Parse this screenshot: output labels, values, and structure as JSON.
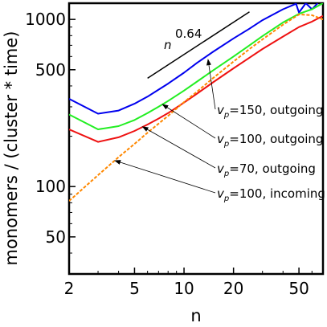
{
  "chart_data": {
    "type": "line",
    "xlabel": "n",
    "ylabel": "monomers / (cluster * time)",
    "xscale": "log",
    "yscale": "log",
    "xlim": [
      2,
      70
    ],
    "ylim": [
      30,
      1250
    ],
    "grid": false,
    "x_ticks": [
      2,
      5,
      10,
      20,
      50
    ],
    "x_tick_labels": [
      "2",
      "5",
      "10",
      "20",
      "50"
    ],
    "y_ticks": [
      50,
      100,
      500,
      1000
    ],
    "y_tick_labels": [
      "50",
      "100",
      "500",
      "1000"
    ],
    "series": [
      {
        "name": "v_p=150, outgoing",
        "color": "#0000ee",
        "style": "solid",
        "points": [
          [
            2,
            335
          ],
          [
            3,
            273
          ],
          [
            4,
            285
          ],
          [
            5,
            313
          ],
          [
            6,
            345
          ],
          [
            7,
            380
          ],
          [
            8,
            413
          ],
          [
            10,
            480
          ],
          [
            12,
            550
          ],
          [
            15,
            640
          ],
          [
            20,
            770
          ],
          [
            25,
            880
          ],
          [
            30,
            990
          ],
          [
            40,
            1150
          ],
          [
            48,
            1240
          ],
          [
            50,
            1100
          ],
          [
            55,
            1250
          ],
          [
            60,
            1150
          ],
          [
            65,
            1250
          ]
        ]
      },
      {
        "name": "v_p=100, outgoing",
        "color": "#22ee22",
        "style": "solid",
        "points": [
          [
            2,
            270
          ],
          [
            3,
            220
          ],
          [
            4,
            230
          ],
          [
            5,
            250
          ],
          [
            6,
            275
          ],
          [
            7,
            300
          ],
          [
            8,
            325
          ],
          [
            10,
            375
          ],
          [
            12,
            425
          ],
          [
            15,
            495
          ],
          [
            20,
            600
          ],
          [
            25,
            700
          ],
          [
            30,
            795
          ],
          [
            40,
            960
          ],
          [
            50,
            1080
          ],
          [
            60,
            1150
          ],
          [
            70,
            1250
          ]
        ]
      },
      {
        "name": "v_p=70, outgoing",
        "color": "#ee1111",
        "style": "solid",
        "points": [
          [
            2,
            220
          ],
          [
            3,
            185
          ],
          [
            4,
            197
          ],
          [
            5,
            215
          ],
          [
            6,
            235
          ],
          [
            7,
            255
          ],
          [
            8,
            275
          ],
          [
            10,
            318
          ],
          [
            12,
            360
          ],
          [
            15,
            420
          ],
          [
            20,
            510
          ],
          [
            25,
            590
          ],
          [
            30,
            665
          ],
          [
            40,
            790
          ],
          [
            50,
            900
          ],
          [
            60,
            970
          ],
          [
            70,
            1050
          ]
        ]
      },
      {
        "name": "v_p=100, incoming",
        "color": "#ff8800",
        "style": "dashed",
        "points": [
          [
            2,
            82
          ],
          [
            3,
            117
          ],
          [
            4,
            150
          ],
          [
            5,
            180
          ],
          [
            6,
            210
          ],
          [
            8,
            265
          ],
          [
            10,
            320
          ],
          [
            12,
            370
          ],
          [
            15,
            445
          ],
          [
            20,
            560
          ],
          [
            25,
            665
          ],
          [
            30,
            760
          ],
          [
            40,
            930
          ],
          [
            50,
            1070
          ],
          [
            60,
            1060
          ],
          [
            70,
            1000
          ]
        ]
      }
    ],
    "reference_line": {
      "label_base": "n",
      "label_exponent": "0.64",
      "exponent": 0.64,
      "x_range": [
        6,
        25
      ],
      "y_at_start": 445,
      "color": "#000000"
    },
    "annotations": [
      {
        "prefix": "v",
        "subscript": "p",
        "suffix": "=150, outgoing",
        "series_index": 0,
        "arrow_target": [
          14,
          575
        ]
      },
      {
        "prefix": "v",
        "subscript": "p",
        "suffix": "=100, outgoing",
        "series_index": 1,
        "arrow_target": [
          7.4,
          310
        ]
      },
      {
        "prefix": "v",
        "subscript": "p",
        "suffix": "=70, outgoing",
        "series_index": 2,
        "arrow_target": [
          5.6,
          228
        ]
      },
      {
        "prefix": "v",
        "subscript": "p",
        "suffix": "=100, incoming",
        "series_index": 3,
        "arrow_target": [
          3.8,
          143
        ]
      }
    ]
  }
}
